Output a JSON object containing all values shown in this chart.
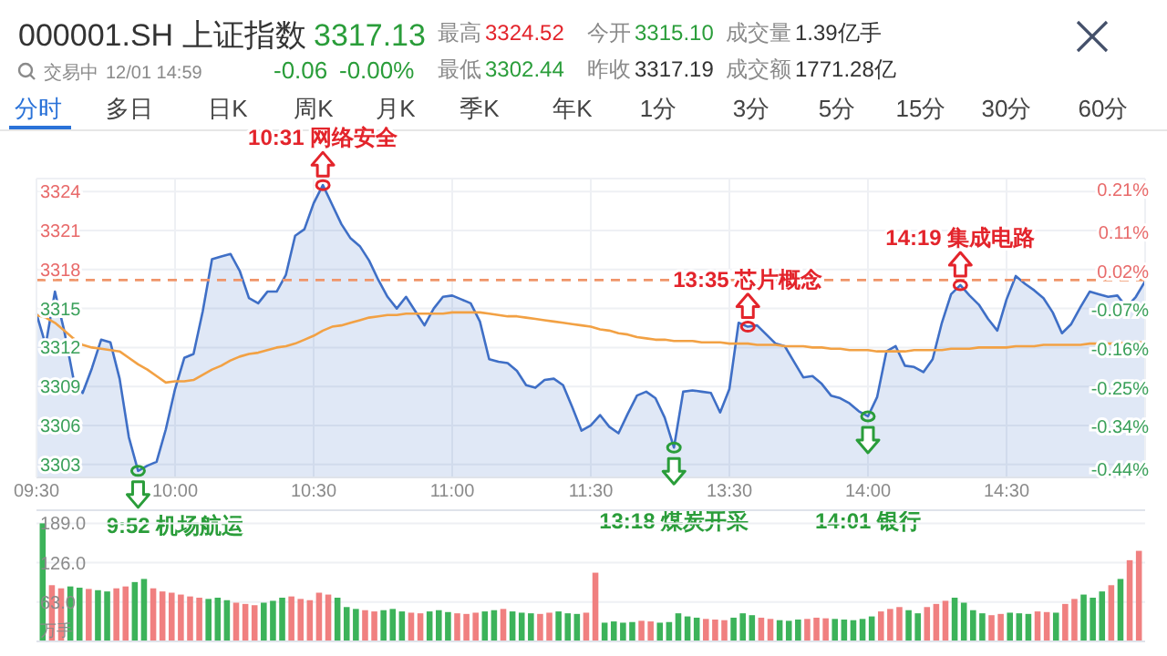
{
  "chart_data": [
    {
      "type": "other",
      "title": "000001.SH 上证指数",
      "annotations": [
        "3317.13",
        "-0.06",
        "-0.00%",
        "交易中",
        "12/01 14:59",
        "最高",
        "3324.52",
        "今开",
        "3315.10",
        "成交量",
        "1.39亿手",
        "最低",
        "3302.44",
        "昨收",
        "3317.19",
        "成交额",
        "1771.28亿",
        "分时",
        "多日",
        "日K",
        "周K",
        "月K",
        "季K",
        "年K",
        "1分",
        "3分",
        "5分",
        "15分",
        "30分",
        "60分"
      ]
    },
    {
      "type": "line",
      "categories": [
        "09:30",
        null,
        null,
        null,
        null,
        null,
        null,
        null,
        null,
        null,
        null,
        null,
        null,
        null,
        null,
        "10:00",
        null,
        null,
        null,
        null,
        null,
        null,
        null,
        null,
        null,
        null,
        null,
        null,
        null,
        null,
        "10:30",
        null,
        null,
        null,
        null,
        null,
        null,
        null,
        null,
        null,
        null,
        null,
        null,
        null,
        null,
        "11:00",
        null,
        null,
        null,
        null,
        null,
        null,
        null,
        null,
        null,
        null,
        null,
        null,
        null,
        null,
        "11:30",
        null,
        null,
        null,
        null,
        null,
        null,
        null,
        null,
        null,
        null,
        null,
        null,
        null,
        null,
        "13:30",
        null,
        null,
        null,
        null,
        null,
        null,
        null,
        null,
        null,
        null,
        null,
        null,
        null,
        null,
        "14:00",
        null,
        null,
        null,
        null,
        null,
        null,
        null,
        null,
        null,
        null,
        null,
        null,
        null,
        null,
        "14:30",
        null,
        null,
        null,
        null,
        null,
        null,
        null,
        null,
        null,
        null,
        null,
        null,
        null,
        null,
        null
      ],
      "ylim": [
        3302,
        3325
      ],
      "yticks": [
        3303,
        3306,
        3309,
        3312,
        3315,
        3318,
        3321,
        3324
      ],
      "y2lim": [
        -0.458,
        0.235
      ],
      "y2ticks": [
        {
          "value": 0.21,
          "label": "0.21%"
        },
        {
          "value": 0.11,
          "label": "0.11%"
        },
        {
          "value": 0.02,
          "label": "0.02%"
        },
        {
          "value": -0.07,
          "label": "-0.07%"
        },
        {
          "value": -0.16,
          "label": "-0.16%"
        },
        {
          "value": -0.25,
          "label": "-0.25%"
        },
        {
          "value": -0.34,
          "label": "-0.34%"
        },
        {
          "value": -0.44,
          "label": "-0.44%"
        }
      ],
      "grid": true,
      "ref_lines": [
        {
          "axis": "y",
          "value": 3317.19,
          "color": "#f0956a",
          "line_style": "dashed"
        }
      ],
      "series": [
        {
          "type": "area",
          "color": "#3f6fc6",
          "values": [
            3314.6,
            3312.2,
            3316.3,
            3313.3,
            3309.6,
            3308.5,
            3310.4,
            3312.6,
            3312.4,
            3309.6,
            3305.1,
            3302.5,
            3302.9,
            3303.2,
            3305.7,
            3308.8,
            3311.2,
            3311.5,
            3314.8,
            3318.8,
            3319.0,
            3319.2,
            3317.9,
            3315.8,
            3315.4,
            3316.3,
            3316.3,
            3317.6,
            3320.6,
            3321.1,
            3323.1,
            3324.5,
            3323,
            3321.5,
            3320.4,
            3319.8,
            3318.7,
            3317.2,
            3315.9,
            3315.0,
            3315.9,
            3314.8,
            3313.7,
            3315.0,
            3315.9,
            3316.0,
            3315.7,
            3315.4,
            3314.0,
            3311.1,
            3310.9,
            3310.8,
            3310.2,
            3309.1,
            3308.9,
            3309.5,
            3309.6,
            3309.1,
            3307.4,
            3305.6,
            3306.0,
            3306.8,
            3305.9,
            3305.4,
            3306.9,
            3308.3,
            3308.6,
            3308.1,
            3306.6,
            3304.3,
            3308.6,
            3308.7,
            3308.6,
            3308.5,
            3307.0,
            3308.8,
            3313.9,
            3313.6,
            3313.7,
            3313.0,
            3312.3,
            3312.1,
            3310.9,
            3309.7,
            3309.8,
            3309.2,
            3308.3,
            3308.1,
            3307.7,
            3307.1,
            3306.7,
            3308.2,
            3311.7,
            3312.1,
            3310.6,
            3310.5,
            3310.1,
            3311.1,
            3313.9,
            3316.1,
            3316.8,
            3316,
            3315.3,
            3314.2,
            3313.3,
            3315.7,
            3317.5,
            3316.9,
            3316.4,
            3315.8,
            3314.7,
            3313.1,
            3313.8,
            3315.1,
            3316.3,
            3316.1,
            3315.9,
            3316.0,
            3315.1,
            3315.9,
            3317.1
          ]
        },
        {
          "type": "line",
          "color": "#f2a144",
          "values": [
            3314.5,
            3314.3,
            3313.9,
            3313.3,
            3312.7,
            3312.2,
            3312.0,
            3311.9,
            3311.8,
            3311.7,
            3311.2,
            3310.7,
            3310.3,
            3309.8,
            3309.3,
            3309.4,
            3309.4,
            3309.5,
            3309.9,
            3310.3,
            3310.6,
            3311.0,
            3311.3,
            3311.5,
            3311.6,
            3311.8,
            3312.0,
            3312.1,
            3312.3,
            3312.6,
            3312.9,
            3313.3,
            3313.6,
            3313.7,
            3313.9,
            3314.1,
            3314.3,
            3314.4,
            3314.5,
            3314.5,
            3314.6,
            3314.6,
            3314.6,
            3314.6,
            3314.6,
            3314.7,
            3314.7,
            3314.7,
            3314.7,
            3314.6,
            3314.5,
            3314.4,
            3314.4,
            3314.3,
            3314.2,
            3314.1,
            3314.0,
            3313.9,
            3313.8,
            3313.7,
            3313.6,
            3313.4,
            3313.3,
            3313.1,
            3313.0,
            3312.8,
            3312.7,
            3312.6,
            3312.6,
            3312.5,
            3312.5,
            3312.5,
            3312.4,
            3312.4,
            3312.4,
            3312.3,
            3312.3,
            3312.3,
            3312.2,
            3312.2,
            3312.2,
            3312.1,
            3312.1,
            3312.1,
            3312.0,
            3312.0,
            3311.9,
            3311.9,
            3311.8,
            3311.8,
            3311.8,
            3311.7,
            3311.7,
            3311.7,
            3311.7,
            3311.8,
            3311.8,
            3311.8,
            3311.8,
            3311.9,
            3311.9,
            3311.9,
            3312.0,
            3312.0,
            3312.0,
            3312.0,
            3312.1,
            3312.1,
            3312.1,
            3312.2,
            3312.2,
            3312.2,
            3312.2,
            3312.2,
            3312.3,
            3312.3,
            3312.3,
            3312.3,
            3312.4,
            3312.4,
            3312.4
          ]
        }
      ],
      "annotations": [
        "9:52 机场航运",
        "10:31 网络安全",
        "13:18 煤炭开采",
        "13:35 芯片概念",
        "14:01 银行",
        "14:19 集成电路"
      ]
    },
    {
      "type": "bar",
      "tick_labels": "y",
      "ylim": [
        0,
        210
      ],
      "yticks": [
        {
          "value": 189,
          "label": "189.0"
        },
        {
          "value": 126,
          "label": "126.0"
        },
        {
          "value": 63,
          "label": "63.0"
        }
      ],
      "ylabel": "万手",
      "grid": true,
      "categories": [
        null,
        null,
        null,
        null,
        null,
        null,
        null,
        null,
        null,
        null,
        null,
        null,
        null,
        null,
        null,
        null,
        null,
        null,
        null,
        null,
        null,
        null,
        null,
        null,
        null,
        null,
        null,
        null,
        null,
        null,
        null,
        null,
        null,
        null,
        null,
        null,
        null,
        null,
        null,
        null,
        null,
        null,
        null,
        null,
        null,
        null,
        null,
        null,
        null,
        null,
        null,
        null,
        null,
        null,
        null,
        null,
        null,
        null,
        null,
        null,
        null,
        null,
        null,
        null,
        null,
        null,
        null,
        null,
        null,
        null,
        null,
        null,
        null,
        null,
        null,
        null,
        null,
        null,
        null,
        null,
        null,
        null,
        null,
        null,
        null,
        null,
        null,
        null,
        null,
        null,
        null,
        null,
        null,
        null,
        null,
        null,
        null,
        null,
        null,
        null,
        null,
        null,
        null,
        null,
        null,
        null,
        null,
        null,
        null,
        null,
        null,
        null,
        null,
        null,
        null,
        null,
        null,
        null,
        null,
        null
      ],
      "values": [
        189,
        90,
        85,
        88,
        86,
        84,
        82,
        80,
        85,
        88,
        95,
        100,
        85,
        80,
        78,
        75,
        72,
        70,
        68,
        70,
        66,
        62,
        60,
        58,
        62,
        65,
        70,
        72,
        68,
        66,
        78,
        75,
        70,
        55,
        52,
        50,
        48,
        50,
        52,
        48,
        46,
        45,
        48,
        50,
        47,
        45,
        44,
        46,
        48,
        50,
        52,
        48,
        46,
        45,
        44,
        46,
        48,
        45,
        44,
        46,
        110,
        30,
        32,
        30,
        31,
        33,
        32,
        30,
        31,
        45,
        40,
        38,
        36,
        35,
        34,
        38,
        45,
        42,
        38,
        36,
        34,
        33,
        35,
        36,
        38,
        37,
        36,
        35,
        34,
        36,
        40,
        48,
        52,
        55,
        50,
        45,
        55,
        60,
        65,
        70,
        62,
        50,
        45,
        42,
        44,
        46,
        45,
        44,
        48,
        47,
        46,
        60,
        68,
        75,
        70,
        80,
        90,
        100,
        130,
        145
      ],
      "colors": [
        "#3cb35a",
        "#f08080",
        "#f08080",
        "#3cb35a",
        "#3cb35a",
        "#f08080",
        "#3cb35a",
        "#3cb35a",
        "#f08080",
        "#f08080",
        "#3cb35a",
        "#3cb35a",
        "#f08080",
        "#f08080",
        "#f08080",
        "#f08080",
        "#f08080",
        "#f08080",
        "#3cb35a",
        "#3cb35a",
        "#3cb35a",
        "#f08080",
        "#f08080",
        "#f08080",
        "#3cb35a",
        "#3cb35a",
        "#3cb35a",
        "#f08080",
        "#f08080",
        "#f08080",
        "#f08080",
        "#f08080",
        "#3cb35a",
        "#3cb35a",
        "#3cb35a",
        "#f08080",
        "#f08080",
        "#3cb35a",
        "#3cb35a",
        "#3cb35a",
        "#f08080",
        "#f08080",
        "#3cb35a",
        "#3cb35a",
        "#3cb35a",
        "#f08080",
        "#f08080",
        "#f08080",
        "#3cb35a",
        "#3cb35a",
        "#f08080",
        "#3cb35a",
        "#3cb35a",
        "#3cb35a",
        "#f08080",
        "#f08080",
        "#3cb35a",
        "#3cb35a",
        "#3cb35a",
        "#f08080",
        "#f08080",
        "#3cb35a",
        "#3cb35a",
        "#3cb35a",
        "#3cb35a",
        "#f08080",
        "#f08080",
        "#3cb35a",
        "#3cb35a",
        "#3cb35a",
        "#3cb35a",
        "#3cb35a",
        "#f08080",
        "#f08080",
        "#f08080",
        "#3cb35a",
        "#3cb35a",
        "#3cb35a",
        "#f08080",
        "#f08080",
        "#3cb35a",
        "#3cb35a",
        "#3cb35a",
        "#f08080",
        "#f08080",
        "#f08080",
        "#3cb35a",
        "#3cb35a",
        "#3cb35a",
        "#3cb35a",
        "#3cb35a",
        "#f08080",
        "#f08080",
        "#f08080",
        "#3cb35a",
        "#3cb35a",
        "#f08080",
        "#f08080",
        "#f08080",
        "#3cb35a",
        "#3cb35a",
        "#3cb35a",
        "#3cb35a",
        "#f08080",
        "#f08080",
        "#3cb35a",
        "#3cb35a",
        "#3cb35a",
        "#f08080",
        "#f08080",
        "#3cb35a",
        "#f08080",
        "#f08080",
        "#3cb35a",
        "#3cb35a",
        "#3cb35a",
        "#f08080",
        "#3cb35a",
        "#f08080",
        "#f08080"
      ]
    }
  ]
}
